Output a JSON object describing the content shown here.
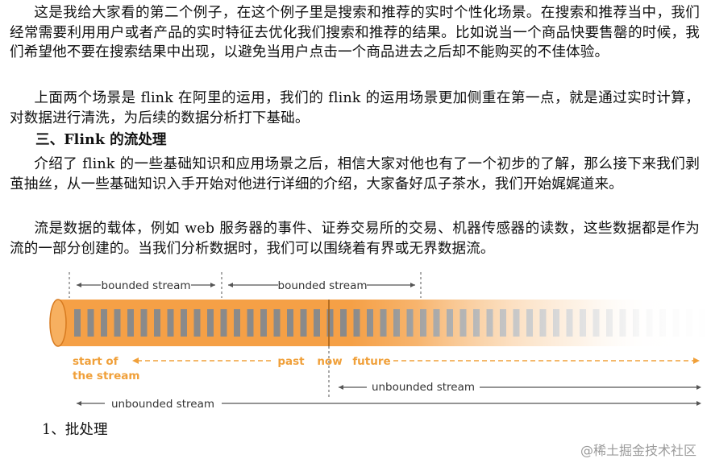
{
  "paragraphs": {
    "p1": "这是我给大家看的第二个例子，在这个例子里是搜索和推荐的实时个性化场景。在搜索和推荐当中，我们经常需要利用用户或者产品的实时特征去优化我们搜索和推荐的结果。比如说当一个商品快要售罄的时候，我们希望他不要在搜索结果中出现，以避免当用户点击一个商品进去之后却不能购买的不佳体验。",
    "p2": "上面两个场景是 flink 在阿里的运用，我们的 flink 的运用场景更加侧重在第一点，就是通过实时计算，对数据进行清洗，为后续的数据分析打下基础。",
    "heading": "三、Flink 的流处理",
    "p3": "介绍了 flink 的一些基础知识和应用场景之后，相信大家对他也有了一个初步的了解，那么接下来我们剥茧抽丝，从一些基础知识入手开始对他进行详细的介绍，大家备好瓜子茶水，我们开始娓娓道来。",
    "p4": "流是数据的载体，例如 web 服务器的事件、证券交易所的交易、机器传感器的读数，这些数据都是作为流的一部分创建的。当我们分析数据时，我们可以围绕着有界或无界数据流。"
  },
  "figure": {
    "bounded_1": "bounded stream",
    "bounded_2": "bounded stream",
    "start_line1": "start of",
    "start_line2": "the stream",
    "past": "past",
    "now": "now",
    "future": "future",
    "unbounded_right": "unbounded stream",
    "unbounded_bottom": "unbounded stream",
    "colors": {
      "tube": "#f5a046",
      "tube_dark": "#d77a1f",
      "bar": "#8a8a8a",
      "orange_label": "#f0a03a"
    }
  },
  "subheading": "1、批处理",
  "watermark": "@稀土掘金技术社区"
}
